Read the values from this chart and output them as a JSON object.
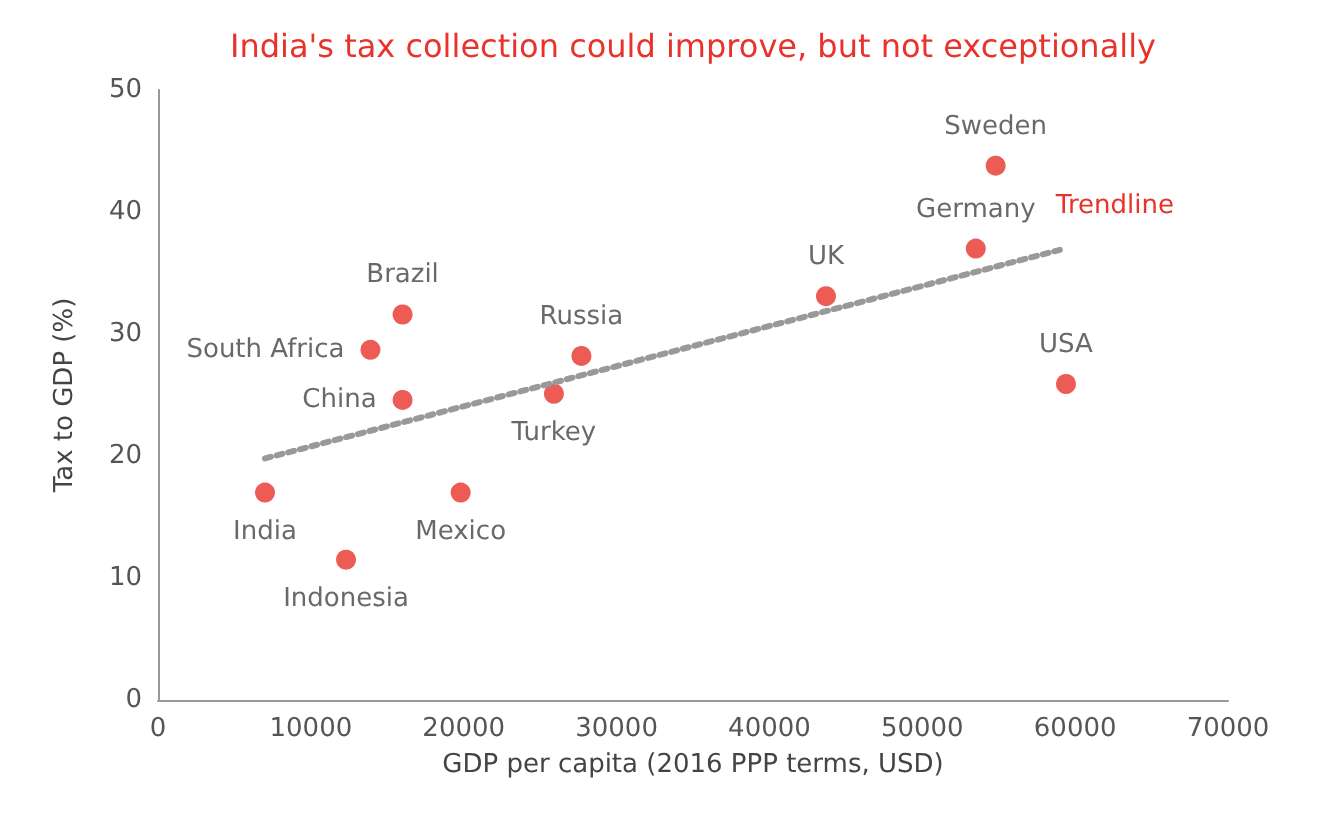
{
  "chart_data": {
    "type": "scatter",
    "title": "India's tax collection could improve, but not exceptionally",
    "xlabel": "GDP per capita (2016 PPP terms, USD)",
    "ylabel": "Tax to GDP (%)",
    "xlim": [
      0,
      70000
    ],
    "xticks": [
      0,
      10000,
      20000,
      30000,
      40000,
      50000,
      60000,
      70000
    ],
    "ylim": [
      0,
      50
    ],
    "yticks": [
      0,
      10,
      20,
      30,
      40,
      50
    ],
    "grid": false,
    "legend": false,
    "marker": "circle",
    "series": [
      {
        "color": "#e8322b",
        "x": [
          7000,
          12300,
          13900,
          16000,
          16000,
          19800,
          25900,
          27700,
          43700,
          53500,
          54800,
          59400
        ],
        "values": [
          17.0,
          11.5,
          28.7,
          31.6,
          24.6,
          17.0,
          25.1,
          28.2,
          33.1,
          37.0,
          43.8,
          25.9
        ],
        "value_labels": [
          "India",
          "Indonesia",
          "South Africa",
          "Brazil",
          "China",
          "Mexico",
          "Turkey",
          "Russia",
          "UK",
          "Germany",
          "Sweden",
          "USA"
        ]
      },
      {
        "type": "line",
        "name": "Trendline",
        "color": "#999999",
        "line_style": "dotted",
        "marker": "none",
        "x": [
          7000,
          59000
        ],
        "values": [
          19.8,
          36.9
        ]
      }
    ]
  }
}
